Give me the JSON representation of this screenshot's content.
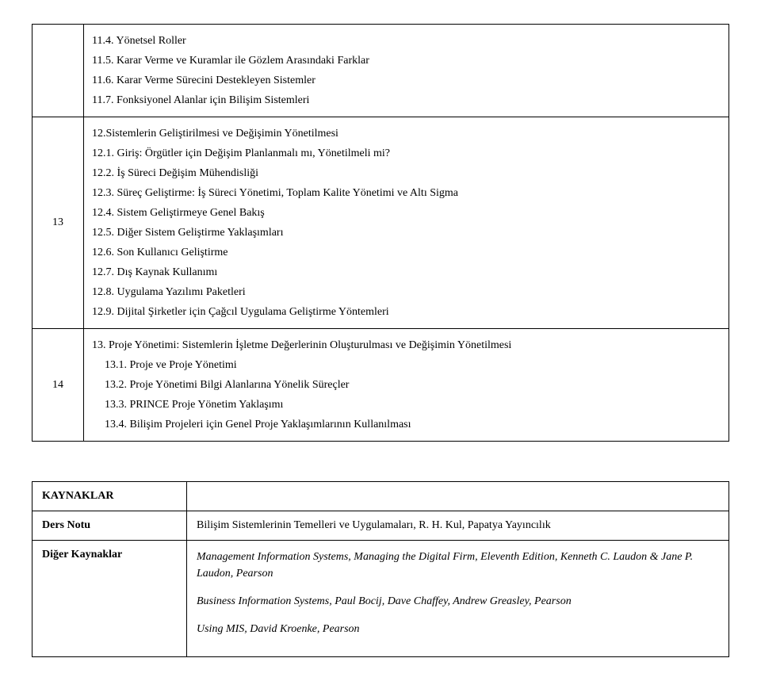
{
  "rows": [
    {
      "num": "",
      "lines": [
        {
          "text": "11.4. Yönetsel Roller"
        },
        {
          "text": "11.5. Karar Verme ve Kuramlar ile Gözlem Arasındaki Farklar"
        },
        {
          "text": "11.6. Karar Verme Sürecini Destekleyen Sistemler"
        },
        {
          "text": "11.7. Fonksiyonel Alanlar için Bilişim Sistemleri"
        }
      ]
    },
    {
      "num": "13",
      "lines": [
        {
          "text": "12.Sistemlerin Geliştirilmesi ve Değişimin Yönetilmesi"
        },
        {
          "text": "12.1. Giriş: Örgütler için Değişim Planlanmalı mı, Yönetilmeli mi?"
        },
        {
          "text": "12.2. İş Süreci Değişim Mühendisliği"
        },
        {
          "text": "12.3. Süreç Geliştirme: İş Süreci Yönetimi, Toplam Kalite Yönetimi ve Altı Sigma"
        },
        {
          "text": "12.4. Sistem Geliştirmeye Genel Bakış"
        },
        {
          "text": "12.5. Diğer Sistem Geliştirme Yaklaşımları"
        },
        {
          "text": "12.6. Son Kullanıcı Geliştirme"
        },
        {
          "text": "12.7. Dış Kaynak Kullanımı"
        },
        {
          "text": "12.8. Uygulama Yazılımı Paketleri"
        },
        {
          "text": "12.9. Dijital Şirketler için Çağcıl Uygulama Geliştirme Yöntemleri"
        }
      ]
    },
    {
      "num": "14",
      "lines": [
        {
          "text": "13. Proje Yönetimi: Sistemlerin İşletme Değerlerinin Oluşturulması ve Değişimin Yönetilmesi"
        },
        {
          "text": "13.1. Proje ve Proje Yönetimi",
          "indent": true
        },
        {
          "text": "13.2. Proje Yönetimi Bilgi Alanlarına Yönelik Süreçler",
          "indent": true
        },
        {
          "text": "13.3. PRINCE Proje Yönetim Yaklaşımı",
          "indent": true
        },
        {
          "text": "13.4. Bilişim Projeleri için Genel Proje Yaklaşımlarının Kullanılması",
          "indent": true
        }
      ]
    }
  ],
  "refs": {
    "header": "KAYNAKLAR",
    "ders_notu_label": "Ders Notu",
    "ders_notu_value": "Bilişim Sistemlerinin Temelleri ve Uygulamaları, R. H. Kul, Papatya Yayıncılık",
    "diger_label": "Diğer Kaynaklar",
    "diger_items": [
      "Management Information Systems, Managing the Digital Firm, Eleventh Edition, Kenneth C. Laudon & Jane P. Laudon, Pearson",
      "Business Information Systems, Paul Bocij, Dave Chaffey, Andrew Greasley, Pearson",
      "Using MIS, David Kroenke, Pearson"
    ]
  }
}
